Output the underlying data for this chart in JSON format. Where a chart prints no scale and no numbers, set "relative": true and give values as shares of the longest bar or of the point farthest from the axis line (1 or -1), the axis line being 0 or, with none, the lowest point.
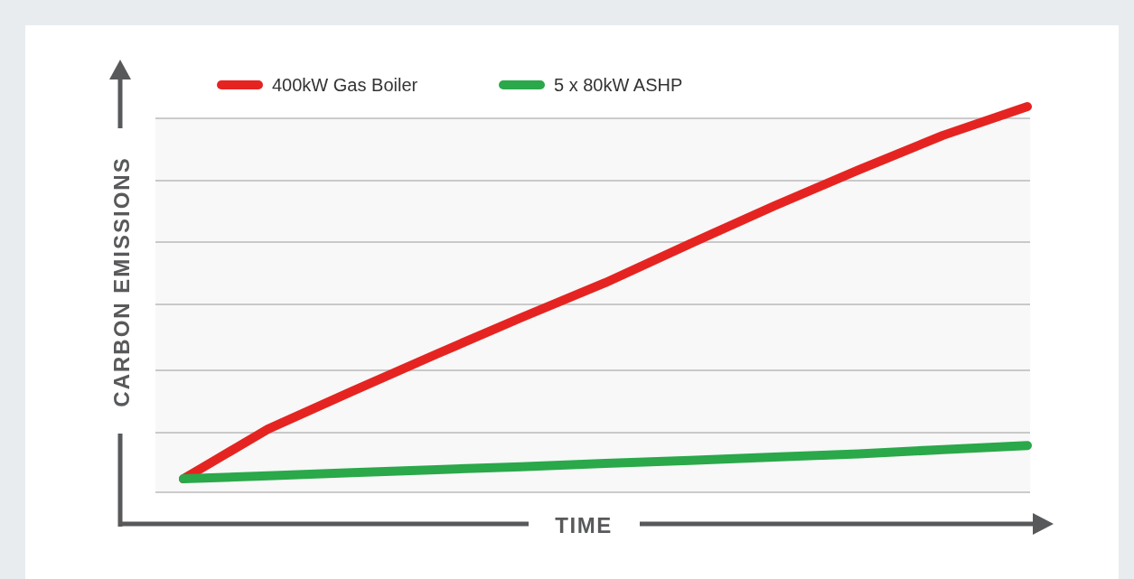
{
  "chart_data": {
    "type": "line",
    "relative": true,
    "xlabel": "TIME",
    "ylabel": "CARBON EMISSIONS",
    "categories": [
      null,
      null,
      null,
      null,
      null,
      null,
      null,
      null,
      null,
      null,
      null
    ],
    "grid": "y",
    "legend": "top left",
    "marker": "none",
    "line_style": "solid",
    "series": [
      {
        "name": "400kW Gas Boiler",
        "color": "#e52421",
        "values": [
          0.108,
          0.227,
          0.318,
          0.407,
          0.494,
          0.578,
          0.671,
          0.762,
          0.848,
          0.931,
          1
        ]
      },
      {
        "name": "5 x 80kW ASHP",
        "color": "#2aa84a",
        "values": [
          0.108,
          0.115,
          0.123,
          0.13,
          0.137,
          0.145,
          0.152,
          0.16,
          0.168,
          0.178,
          0.188
        ]
      }
    ]
  }
}
